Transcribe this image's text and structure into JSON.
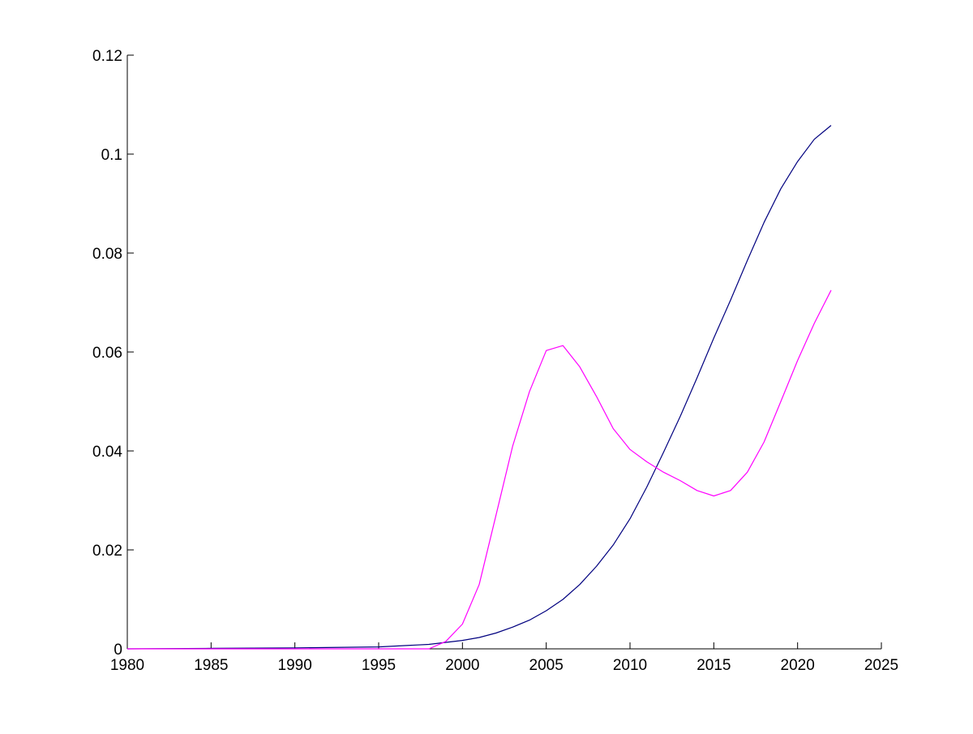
{
  "chart_data": {
    "type": "line",
    "title": "",
    "xlabel": "",
    "ylabel": "",
    "xlim": [
      1980,
      2025
    ],
    "ylim": [
      0,
      0.12
    ],
    "xticks": [
      1980,
      1985,
      1990,
      1995,
      2000,
      2005,
      2010,
      2015,
      2020,
      2025
    ],
    "yticks": [
      0,
      0.02,
      0.04,
      0.06,
      0.08,
      0.1,
      0.12
    ],
    "xtick_labels": [
      "1980",
      "1985",
      "1990",
      "1995",
      "2000",
      "2005",
      "2010",
      "2015",
      "2020",
      "2025"
    ],
    "ytick_labels": [
      "0",
      "0.02",
      "0.04",
      "0.06",
      "0.08",
      "0.1",
      "0.12"
    ],
    "grid": false,
    "legend": "none",
    "series": [
      {
        "color": "#00007f",
        "x": [
          1980,
          1985,
          1990,
          1995,
          1998,
          2000,
          2001,
          2002,
          2003,
          2004,
          2005,
          2006,
          2007,
          2008,
          2009,
          2010,
          2011,
          2012,
          2013,
          2014,
          2015,
          2016,
          2017,
          2018,
          2019,
          2020,
          2021,
          2022
        ],
        "y": [
          0,
          0.0001,
          0.0002,
          0.0004,
          0.0009,
          0.0017,
          0.0023,
          0.0032,
          0.0044,
          0.0058,
          0.0077,
          0.01,
          0.013,
          0.0167,
          0.021,
          0.0263,
          0.0327,
          0.0397,
          0.047,
          0.0548,
          0.0628,
          0.0705,
          0.0785,
          0.0862,
          0.093,
          0.0985,
          0.103,
          0.1058
        ]
      },
      {
        "color": "#ff00ff",
        "x": [
          1980,
          1985,
          1990,
          1995,
          1998,
          1999,
          2000,
          2001,
          2002,
          2003,
          2004,
          2005,
          2006,
          2007,
          2008,
          2009,
          2010,
          2011,
          2012,
          2013,
          2014,
          2015,
          2016,
          2017,
          2018,
          2019,
          2020,
          2021,
          2022
        ],
        "y": [
          0,
          0,
          0,
          0,
          0,
          0.0015,
          0.005,
          0.013,
          0.027,
          0.041,
          0.052,
          0.0603,
          0.0613,
          0.057,
          0.051,
          0.0445,
          0.0403,
          0.0378,
          0.0357,
          0.034,
          0.032,
          0.0309,
          0.032,
          0.0357,
          0.0418,
          0.05,
          0.0583,
          0.0658,
          0.0725
        ]
      }
    ]
  }
}
